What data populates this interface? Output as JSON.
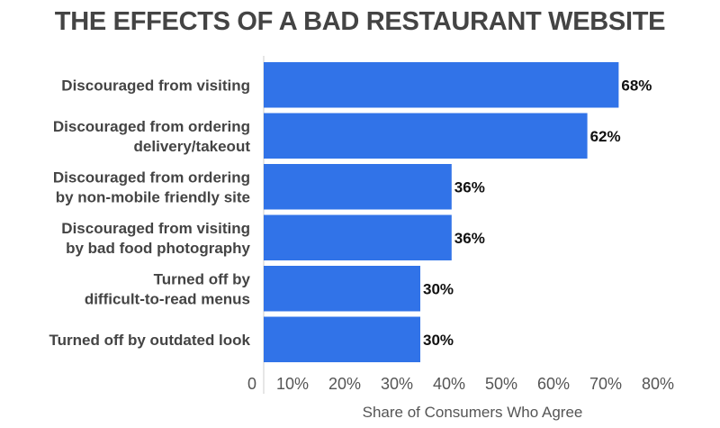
{
  "chart_data": {
    "type": "bar",
    "orientation": "horizontal",
    "title": "THE EFFECTS OF A BAD RESTAURANT WEBSITE",
    "xlabel": "Share of Consumers Who Agree",
    "ylabel": "",
    "categories": [
      [
        "Discouraged from visiting"
      ],
      [
        "Discouraged from ordering",
        "delivery/takeout"
      ],
      [
        "Discouraged from ordering",
        "by non-mobile friendly site"
      ],
      [
        "Discouraged from visiting",
        "by bad food photography"
      ],
      [
        "Turned off by",
        "difficult-to-read menus"
      ],
      [
        "Turned off by outdated look"
      ]
    ],
    "values": [
      68,
      62,
      36,
      36,
      30,
      30
    ],
    "data_labels": [
      "68%",
      "62%",
      "36%",
      "36%",
      "30%",
      "30%"
    ],
    "xlim": [
      0,
      80
    ],
    "ticks": [
      0,
      10,
      20,
      30,
      40,
      50,
      60,
      70,
      80
    ],
    "tick_labels": [
      "0",
      "10%",
      "20%",
      "30%",
      "40%",
      "50%",
      "60%",
      "70%",
      "80%"
    ],
    "grid": false,
    "legend": "none",
    "colors": {
      "bar": "#3173E8",
      "axis": "#dddddd"
    }
  }
}
